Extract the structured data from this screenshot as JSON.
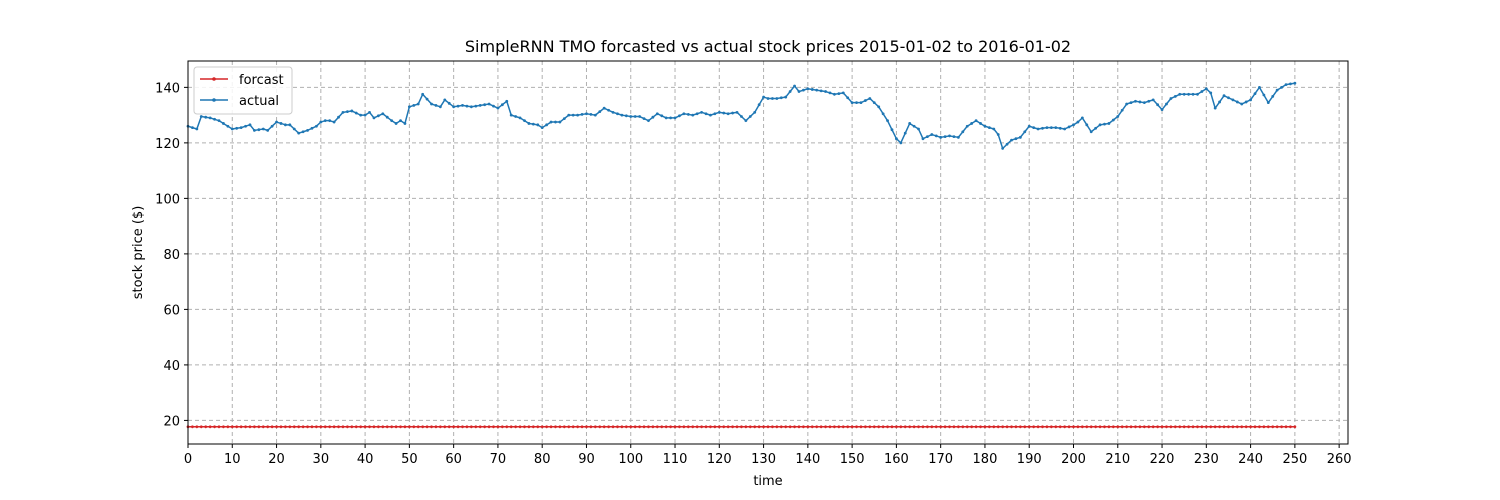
{
  "chart_data": {
    "type": "line",
    "title": "SimpleRNN TMO forcasted vs actual stock prices 2015-01-02 to 2016-01-02",
    "xlabel": "time",
    "ylabel": "stock price ($)",
    "xlim": [
      0,
      262
    ],
    "ylim": [
      11.5,
      149.5
    ],
    "xticks": [
      0,
      10,
      20,
      30,
      40,
      50,
      60,
      70,
      80,
      90,
      100,
      110,
      120,
      130,
      140,
      150,
      160,
      170,
      180,
      190,
      200,
      210,
      220,
      230,
      240,
      250,
      260
    ],
    "yticks": [
      20,
      40,
      60,
      80,
      100,
      120,
      140
    ],
    "grid": true,
    "legend_position": "upper-left",
    "series": [
      {
        "name": "forcast",
        "color": "#d62728",
        "constant_value": 17.7,
        "x_range": [
          0,
          250
        ],
        "anchor_x": [
          0,
          250
        ],
        "anchor_y": [
          17.7,
          17.7
        ]
      },
      {
        "name": "actual",
        "color": "#1f77b4",
        "x_range": [
          0,
          250
        ],
        "anchor_x": [
          0,
          2,
          3,
          5,
          7,
          9,
          10,
          12,
          14,
          15,
          17,
          18,
          20,
          22,
          23,
          25,
          27,
          29,
          30,
          31,
          32,
          33,
          35,
          37,
          39,
          40,
          41,
          42,
          44,
          46,
          47,
          48,
          49,
          50,
          52,
          53,
          55,
          57,
          58,
          60,
          62,
          64,
          66,
          68,
          70,
          72,
          73,
          75,
          77,
          79,
          80,
          82,
          84,
          86,
          88,
          90,
          92,
          94,
          96,
          98,
          100,
          102,
          104,
          106,
          108,
          110,
          112,
          114,
          116,
          118,
          120,
          122,
          124,
          126,
          128,
          130,
          131,
          133,
          135,
          137,
          138,
          140,
          142,
          144,
          146,
          148,
          150,
          152,
          154,
          156,
          158,
          160,
          161,
          163,
          165,
          166,
          168,
          170,
          172,
          174,
          176,
          178,
          180,
          182,
          183,
          184,
          186,
          188,
          190,
          192,
          194,
          196,
          198,
          200,
          201,
          202,
          204,
          206,
          208,
          210,
          212,
          214,
          216,
          218,
          220,
          222,
          224,
          226,
          228,
          230,
          231,
          232,
          234,
          236,
          238,
          240,
          242,
          244,
          246,
          248,
          250
        ],
        "anchor_y": [
          126,
          125,
          129.5,
          129,
          128,
          126,
          125,
          125.5,
          126.5,
          124.5,
          125,
          124.5,
          127.5,
          126.5,
          126.5,
          123.5,
          124.5,
          126,
          127.5,
          128,
          128,
          127.5,
          131,
          131.5,
          130,
          130,
          131,
          129,
          130.5,
          128,
          127,
          128,
          127,
          133,
          134,
          137.5,
          134,
          133,
          135.5,
          133,
          133.5,
          133,
          133.5,
          134,
          132.5,
          135,
          130,
          129,
          127,
          126.5,
          125.5,
          127.5,
          127.5,
          130,
          130,
          130.5,
          130,
          132.5,
          131,
          130,
          129.5,
          129.5,
          128,
          130.5,
          129,
          129,
          130.5,
          130,
          131,
          130,
          131,
          130.5,
          131,
          128,
          131,
          136.5,
          136,
          136,
          136.5,
          140.5,
          138.5,
          139.5,
          139,
          138.5,
          137.5,
          138,
          134.5,
          134.5,
          136,
          133,
          128,
          121.5,
          120,
          127,
          125,
          121.5,
          123,
          122,
          122.5,
          122,
          126,
          128,
          126,
          125,
          123,
          118,
          121,
          122,
          126,
          125,
          125.5,
          125.5,
          125,
          126.5,
          127.5,
          129,
          124,
          126.5,
          127,
          129.5,
          134,
          135,
          134.5,
          135.5,
          132,
          136,
          137.5,
          137.5,
          137.5,
          139.5,
          138,
          132.5,
          137,
          135.5,
          134,
          135.5,
          140,
          134.5,
          139,
          141,
          141.5,
          142.5,
          141.5
        ]
      }
    ]
  }
}
